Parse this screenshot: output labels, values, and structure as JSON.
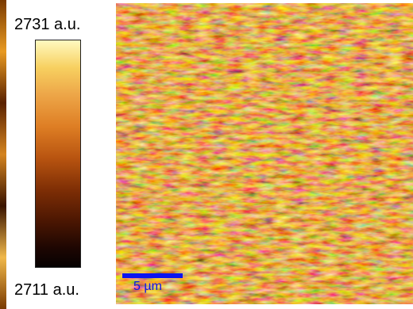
{
  "colorbar": {
    "max_label": "2731 a.u.",
    "min_label": "2711 a.u.",
    "max_value": 2731,
    "min_value": 2711,
    "unit": "a.u.",
    "colormap": "afmhot",
    "stops": [
      "#fffac0",
      "#f7d060",
      "#eda648",
      "#de7e24",
      "#b85410",
      "#7e2e05",
      "#4a1602",
      "#1c0602",
      "#060101"
    ]
  },
  "scale_bar": {
    "label": "5 µm",
    "color": "#0a14f0"
  },
  "image": {
    "pattern": "horizontally streaked thermal-colormap intensity map"
  }
}
